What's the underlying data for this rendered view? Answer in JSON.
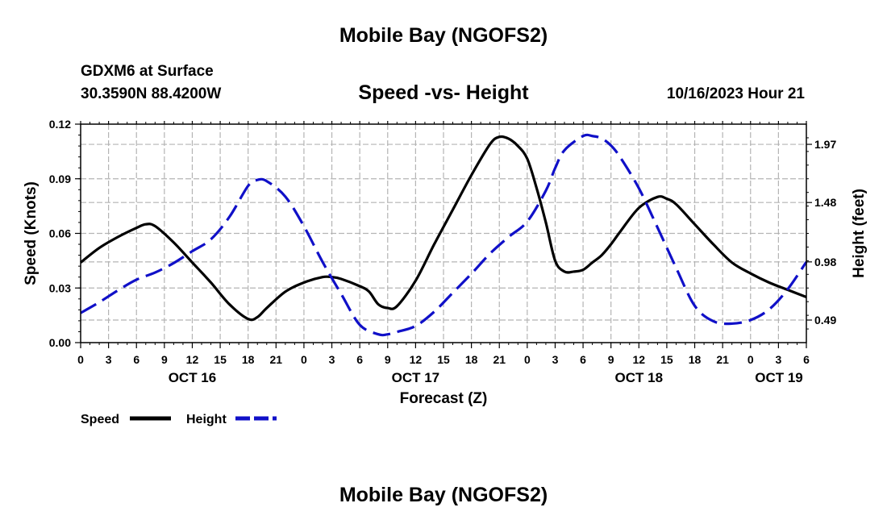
{
  "header": {
    "title": "Mobile Bay (NGOFS2)",
    "station": "GDXM6 at Surface",
    "coords": "30.3590N  88.4200W",
    "chart_title": "Speed -vs- Height",
    "datetime": "10/16/2023 Hour 21"
  },
  "footer": {
    "title": "Mobile Bay (NGOFS2)"
  },
  "chart_data": {
    "type": "line",
    "title": "Speed -vs- Height",
    "xlabel": "Forecast (Z)",
    "ylabel": "Speed (Knots)",
    "y2label": "Height (feet)",
    "x_unit": "forecast hours from OCT 16 00Z",
    "xlim": [
      0,
      78
    ],
    "ylim": [
      0,
      0.12
    ],
    "y2lim": [
      0.3,
      2.14
    ],
    "grid": true,
    "legend_position": "bottom-left",
    "x_ticks": [
      0,
      3,
      6,
      9,
      12,
      15,
      18,
      21,
      24,
      27,
      30,
      33,
      36,
      39,
      42,
      45,
      48,
      51,
      54,
      57,
      60,
      63,
      66,
      69,
      72,
      75,
      78
    ],
    "x_tick_labels": [
      "0",
      "3",
      "6",
      "9",
      "12",
      "15",
      "18",
      "21",
      "0",
      "3",
      "6",
      "9",
      "12",
      "15",
      "18",
      "21",
      "0",
      "3",
      "6",
      "9",
      "12",
      "15",
      "18",
      "21",
      "0",
      "3",
      "6"
    ],
    "day_labels": [
      {
        "x": 12,
        "label": "OCT 16"
      },
      {
        "x": 36,
        "label": "OCT 17"
      },
      {
        "x": 60,
        "label": "OCT 18"
      },
      {
        "x": 78,
        "label": "OCT 19"
      }
    ],
    "y_ticks": [
      0,
      0.03,
      0.06,
      0.09,
      0.12
    ],
    "y_tick_labels": [
      "0.00",
      "0.03",
      "0.06",
      "0.09",
      "0.12"
    ],
    "y2_ticks": [
      0.49,
      0.98,
      1.48,
      1.97
    ],
    "y2_tick_labels": [
      "0.49",
      "0.98",
      "1.48",
      "1.97"
    ],
    "series": [
      {
        "name": "Speed",
        "axis": "left",
        "color": "#000000",
        "style": "solid",
        "x": [
          0,
          2,
          4,
          6,
          7,
          8,
          10,
          12,
          14,
          16,
          18,
          19,
          20,
          22,
          24,
          26,
          27,
          28,
          30,
          31,
          32,
          33,
          34,
          36,
          38,
          40,
          42,
          44,
          45,
          46,
          47,
          48,
          49,
          50,
          51,
          52,
          53,
          54,
          55,
          56,
          57,
          58,
          60,
          62,
          63,
          64,
          66,
          68,
          70,
          72,
          74,
          76,
          78
        ],
        "values": [
          0.044,
          0.052,
          0.058,
          0.063,
          0.065,
          0.064,
          0.055,
          0.044,
          0.033,
          0.021,
          0.013,
          0.014,
          0.019,
          0.028,
          0.033,
          0.036,
          0.036,
          0.035,
          0.031,
          0.028,
          0.021,
          0.019,
          0.02,
          0.034,
          0.054,
          0.073,
          0.092,
          0.109,
          0.113,
          0.112,
          0.108,
          0.101,
          0.085,
          0.066,
          0.045,
          0.039,
          0.039,
          0.04,
          0.044,
          0.048,
          0.054,
          0.061,
          0.074,
          0.08,
          0.079,
          0.076,
          0.065,
          0.054,
          0.044,
          0.038,
          0.033,
          0.029,
          0.025
        ]
      },
      {
        "name": "Height",
        "axis": "right",
        "color": "#1010c8",
        "style": "dashed",
        "x": [
          0,
          2,
          4,
          6,
          8,
          10,
          12,
          14,
          16,
          18,
          19,
          20,
          22,
          24,
          26,
          28,
          30,
          32,
          33,
          34,
          36,
          38,
          40,
          42,
          44,
          46,
          48,
          50,
          51,
          52,
          54,
          55,
          56,
          57,
          58,
          60,
          62,
          64,
          66,
          68,
          70,
          72,
          74,
          76,
          78
        ],
        "values": [
          0.55,
          0.64,
          0.74,
          0.83,
          0.89,
          0.97,
          1.07,
          1.17,
          1.36,
          1.62,
          1.67,
          1.66,
          1.53,
          1.28,
          0.98,
          0.71,
          0.45,
          0.37,
          0.37,
          0.39,
          0.44,
          0.56,
          0.72,
          0.88,
          1.05,
          1.19,
          1.32,
          1.58,
          1.77,
          1.92,
          2.04,
          2.04,
          2.02,
          1.96,
          1.86,
          1.6,
          1.27,
          0.93,
          0.61,
          0.48,
          0.46,
          0.49,
          0.58,
          0.75,
          0.98
        ]
      }
    ]
  }
}
